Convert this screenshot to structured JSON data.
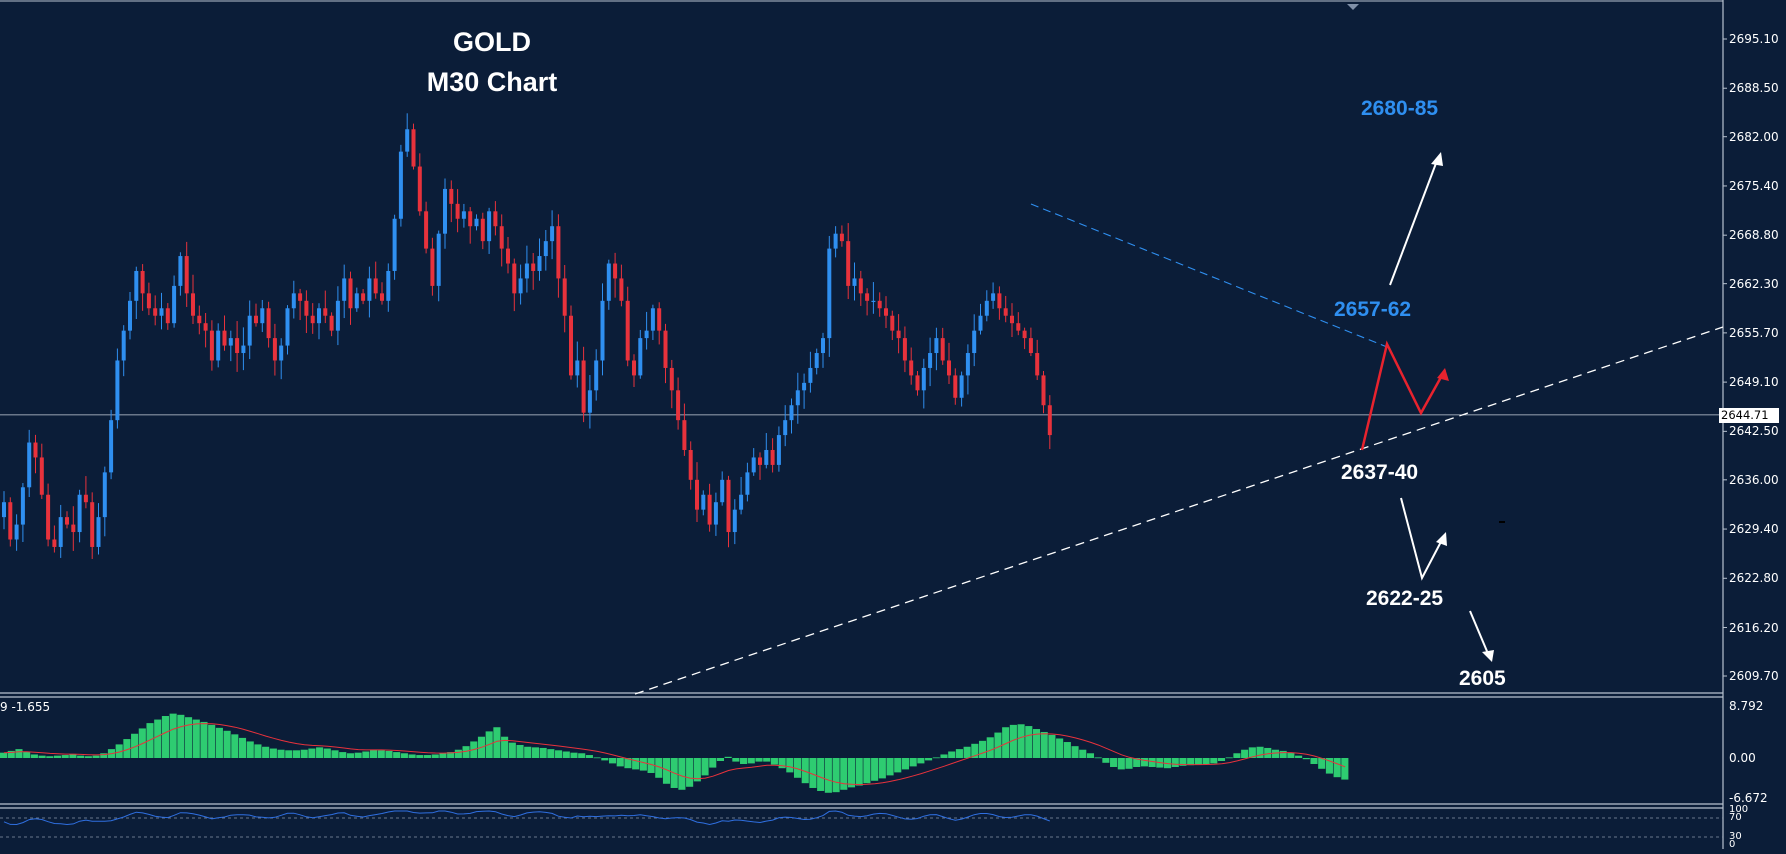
{
  "title": {
    "line1": "GOLD",
    "line2": "M30 Chart"
  },
  "current_price": "2644.71",
  "annotations": {
    "target_high": "2680-85",
    "resistance": "2657-62",
    "support1": "2637-40",
    "support2": "2622-25",
    "support3": "2605"
  },
  "macd_label": "9 -1.655",
  "colors": {
    "background": "#0b1d38",
    "bull": "#2f8ff0",
    "bear": "#e8323c",
    "histogram": "#2ecc71",
    "signal": "#e8323c",
    "label_blue": "#2f8ff0",
    "path_red": "#e8232e"
  },
  "chart_data": [
    {
      "type": "candlestick",
      "title": "GOLD M30 Chart",
      "ylim": [
        2606.4,
        2699.6
      ],
      "y_ticks": [
        "2695.10",
        "2688.50",
        "2682.00",
        "2675.40",
        "2668.80",
        "2662.30",
        "2655.70",
        "2649.10",
        "2642.50",
        "2636.00",
        "2629.40",
        "2622.80",
        "2616.20",
        "2609.70"
      ],
      "current_price_line": 2644.71,
      "close_series": [
        2633,
        2628,
        2630,
        2635,
        2641,
        2639,
        2634,
        2628,
        2627,
        2631,
        2630,
        2629,
        2634,
        2633,
        2627,
        2631,
        2637,
        2644,
        2652,
        2656,
        2660,
        2664,
        2661,
        2659,
        2658,
        2659,
        2657,
        2662,
        2666,
        2661,
        2658,
        2657,
        2656,
        2652,
        2656,
        2654,
        2655,
        2653,
        2654,
        2658,
        2657,
        2659,
        2655,
        2652,
        2654,
        2659,
        2661,
        2660,
        2658,
        2657,
        2659,
        2658,
        2656,
        2660,
        2663,
        2659,
        2661,
        2660,
        2663,
        2661,
        2660,
        2664,
        2671,
        2680,
        2683,
        2678,
        2672,
        2667,
        2662,
        2669,
        2675,
        2673,
        2671,
        2672,
        2670,
        2671,
        2668,
        2672,
        2670,
        2667,
        2665,
        2661,
        2663,
        2665,
        2664,
        2666,
        2668,
        2670,
        2663,
        2658,
        2650,
        2652,
        2645,
        2648,
        2652,
        2660,
        2665,
        2663,
        2660,
        2652,
        2650,
        2655,
        2656,
        2659,
        2656,
        2651,
        2648,
        2644,
        2640,
        2636,
        2632,
        2634,
        2630,
        2633,
        2636,
        2629,
        2632,
        2634,
        2637,
        2639,
        2638,
        2640,
        2638,
        2642,
        2644,
        2646,
        2648,
        2649,
        2651,
        2653,
        2655,
        2667,
        2669,
        2668,
        2662,
        2663,
        2661,
        2660,
        2660,
        2659,
        2658,
        2656,
        2655,
        2652,
        2650,
        2648,
        2651,
        2653,
        2655,
        2652,
        2650,
        2647,
        2650,
        2653,
        2656,
        2658,
        2660,
        2661,
        2659,
        2658,
        2657,
        2656,
        2655,
        2653,
        2650,
        2646,
        2642
      ],
      "trendlines": [
        {
          "style": "dashed",
          "color": "white",
          "from": [
            "2024-bar-84",
            2605.8
          ],
          "to": [
            "right-edge",
            2656.2
          ]
        },
        {
          "style": "dashed",
          "color": "blue",
          "from": [
            "bar-131",
            2673.1
          ],
          "to": [
            "bar-178",
            2654.2
          ]
        }
      ],
      "projections": {
        "bullish": [
          2641,
          2655,
          2646,
          2650,
          2680
        ],
        "bearish": [
          2637,
          2625,
          2630,
          2605
        ]
      }
    },
    {
      "type": "bar",
      "title": "MACD",
      "label": "9 -1.655",
      "ylim": [
        -6.672,
        8.792
      ],
      "y_ticks": [
        "8.792",
        "0.00",
        "-6.672"
      ],
      "histogram": [
        0.9,
        1.2,
        1.5,
        1.1,
        0.6,
        0.4,
        0.3,
        0.4,
        0.5,
        0.6,
        0.4,
        0.3,
        0.4,
        0.8,
        1.5,
        2.3,
        3.2,
        4.1,
        5.0,
        5.9,
        6.5,
        7.1,
        7.5,
        7.3,
        6.9,
        6.5,
        6.1,
        5.6,
        5.1,
        4.6,
        4.0,
        3.4,
        2.8,
        2.3,
        1.9,
        1.6,
        1.4,
        1.3,
        1.3,
        1.4,
        1.6,
        1.8,
        1.6,
        1.3,
        1.0,
        0.8,
        0.9,
        1.1,
        1.4,
        1.3,
        1.2,
        1.0,
        0.8,
        0.6,
        0.5,
        0.5,
        0.6,
        0.8,
        1.0,
        1.4,
        2.0,
        2.8,
        3.6,
        4.5,
        5.2,
        3.6,
        2.6,
        2.2,
        1.9,
        1.8,
        1.7,
        1.5,
        1.3,
        1.1,
        0.9,
        0.8,
        0.5,
        0.1,
        -0.4,
        -0.9,
        -1.4,
        -1.7,
        -1.9,
        -2.1,
        -2.5,
        -3.3,
        -4.3,
        -5.0,
        -5.3,
        -4.8,
        -3.9,
        -2.9,
        -1.6,
        -0.5,
        0.2,
        -0.6,
        -1.0,
        -0.9,
        -0.6,
        -0.6,
        -1.1,
        -1.7,
        -2.4,
        -3.3,
        -4.2,
        -5.0,
        -5.5,
        -5.8,
        -5.7,
        -5.3,
        -4.9,
        -4.6,
        -4.2,
        -3.8,
        -3.4,
        -2.9,
        -2.4,
        -1.9,
        -1.4,
        -0.9,
        -0.4,
        0.1,
        0.6,
        1.1,
        1.5,
        1.9,
        2.4,
        2.9,
        3.5,
        4.3,
        5.2,
        5.6,
        5.7,
        5.4,
        4.9,
        4.4,
        3.9,
        3.3,
        2.7,
        2.0,
        1.4,
        0.8,
        0.1,
        -0.8,
        -1.5,
        -1.9,
        -1.8,
        -1.5,
        -1.4,
        -1.5,
        -1.6,
        -1.7,
        -1.5,
        -1.3,
        -1.2,
        -1.1,
        -1.0,
        -0.9,
        -0.5,
        0.1,
        0.8,
        1.4,
        1.8,
        1.9,
        1.7,
        1.4,
        1.2,
        0.9,
        0.4,
        -0.2,
        -1.0,
        -1.8,
        -2.6,
        -3.2,
        -3.6
      ]
    },
    {
      "type": "line",
      "title": "Oscillator",
      "ylim": [
        0,
        100
      ],
      "y_ticks": [
        "100",
        "70",
        "30",
        "0"
      ]
    }
  ]
}
